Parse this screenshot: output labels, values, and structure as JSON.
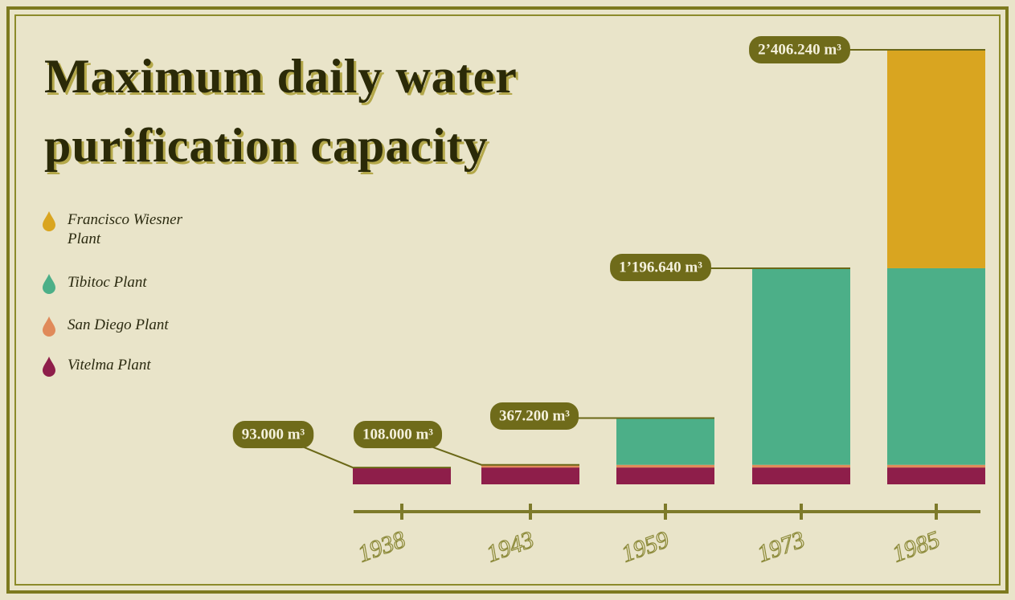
{
  "chart_data": {
    "type": "stacked_bar",
    "title": "Maximum daily water purification capacity",
    "categories": [
      "1938",
      "1943",
      "1959",
      "1973",
      "1985"
    ],
    "series": [
      {
        "name": "Vitelma Plant",
        "color": "#8e1e4a",
        "values": [
          93000,
          93000,
          93000,
          93000,
          93000
        ]
      },
      {
        "name": "San Diego Plant",
        "color": "#e08a5a",
        "values": [
          0,
          15000,
          15000,
          15000,
          15000
        ]
      },
      {
        "name": "Tibitoc Plant",
        "color": "#4caf88",
        "values": [
          0,
          0,
          259200,
          1088640,
          1088640
        ]
      },
      {
        "name": "Francisco Wiesner Plant",
        "color": "#d9a520",
        "values": [
          0,
          0,
          0,
          0,
          1209600
        ]
      }
    ],
    "totals": [
      93000,
      108000,
      367200,
      1196640,
      2406240
    ],
    "total_labels": [
      "93.000 m³",
      "108.000 m³",
      "367.200 m³",
      "1’196.640 m³",
      "2’406.240 m³"
    ]
  }
}
